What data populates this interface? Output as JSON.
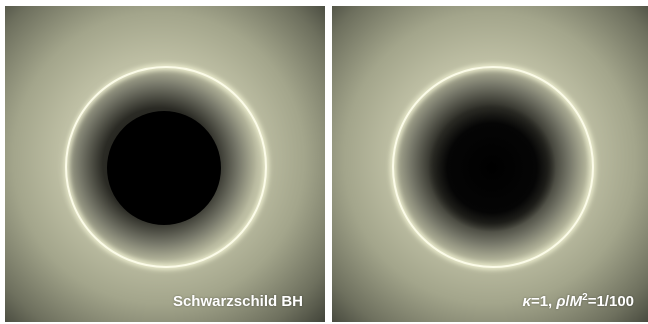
{
  "panels": [
    {
      "caption": "Schwarzschild BH",
      "shadow_edge": "sharp"
    },
    {
      "caption_parts": {
        "kappa_symbol": "κ",
        "kappa_eq": "=1, ",
        "rho_symbol": "ρ",
        "slash": "/",
        "mass_symbol": "M",
        "exponent": "2",
        "tail": "=1/100"
      },
      "shadow_edge": "soft"
    }
  ],
  "colors": {
    "background_outer": "#3b3d33",
    "background_mid": "#9c9e84",
    "background_inner": "#c2c3a8",
    "photon_ring": "#f3f4d6",
    "shadow": "#000000",
    "caption_text": "#ffffff"
  }
}
